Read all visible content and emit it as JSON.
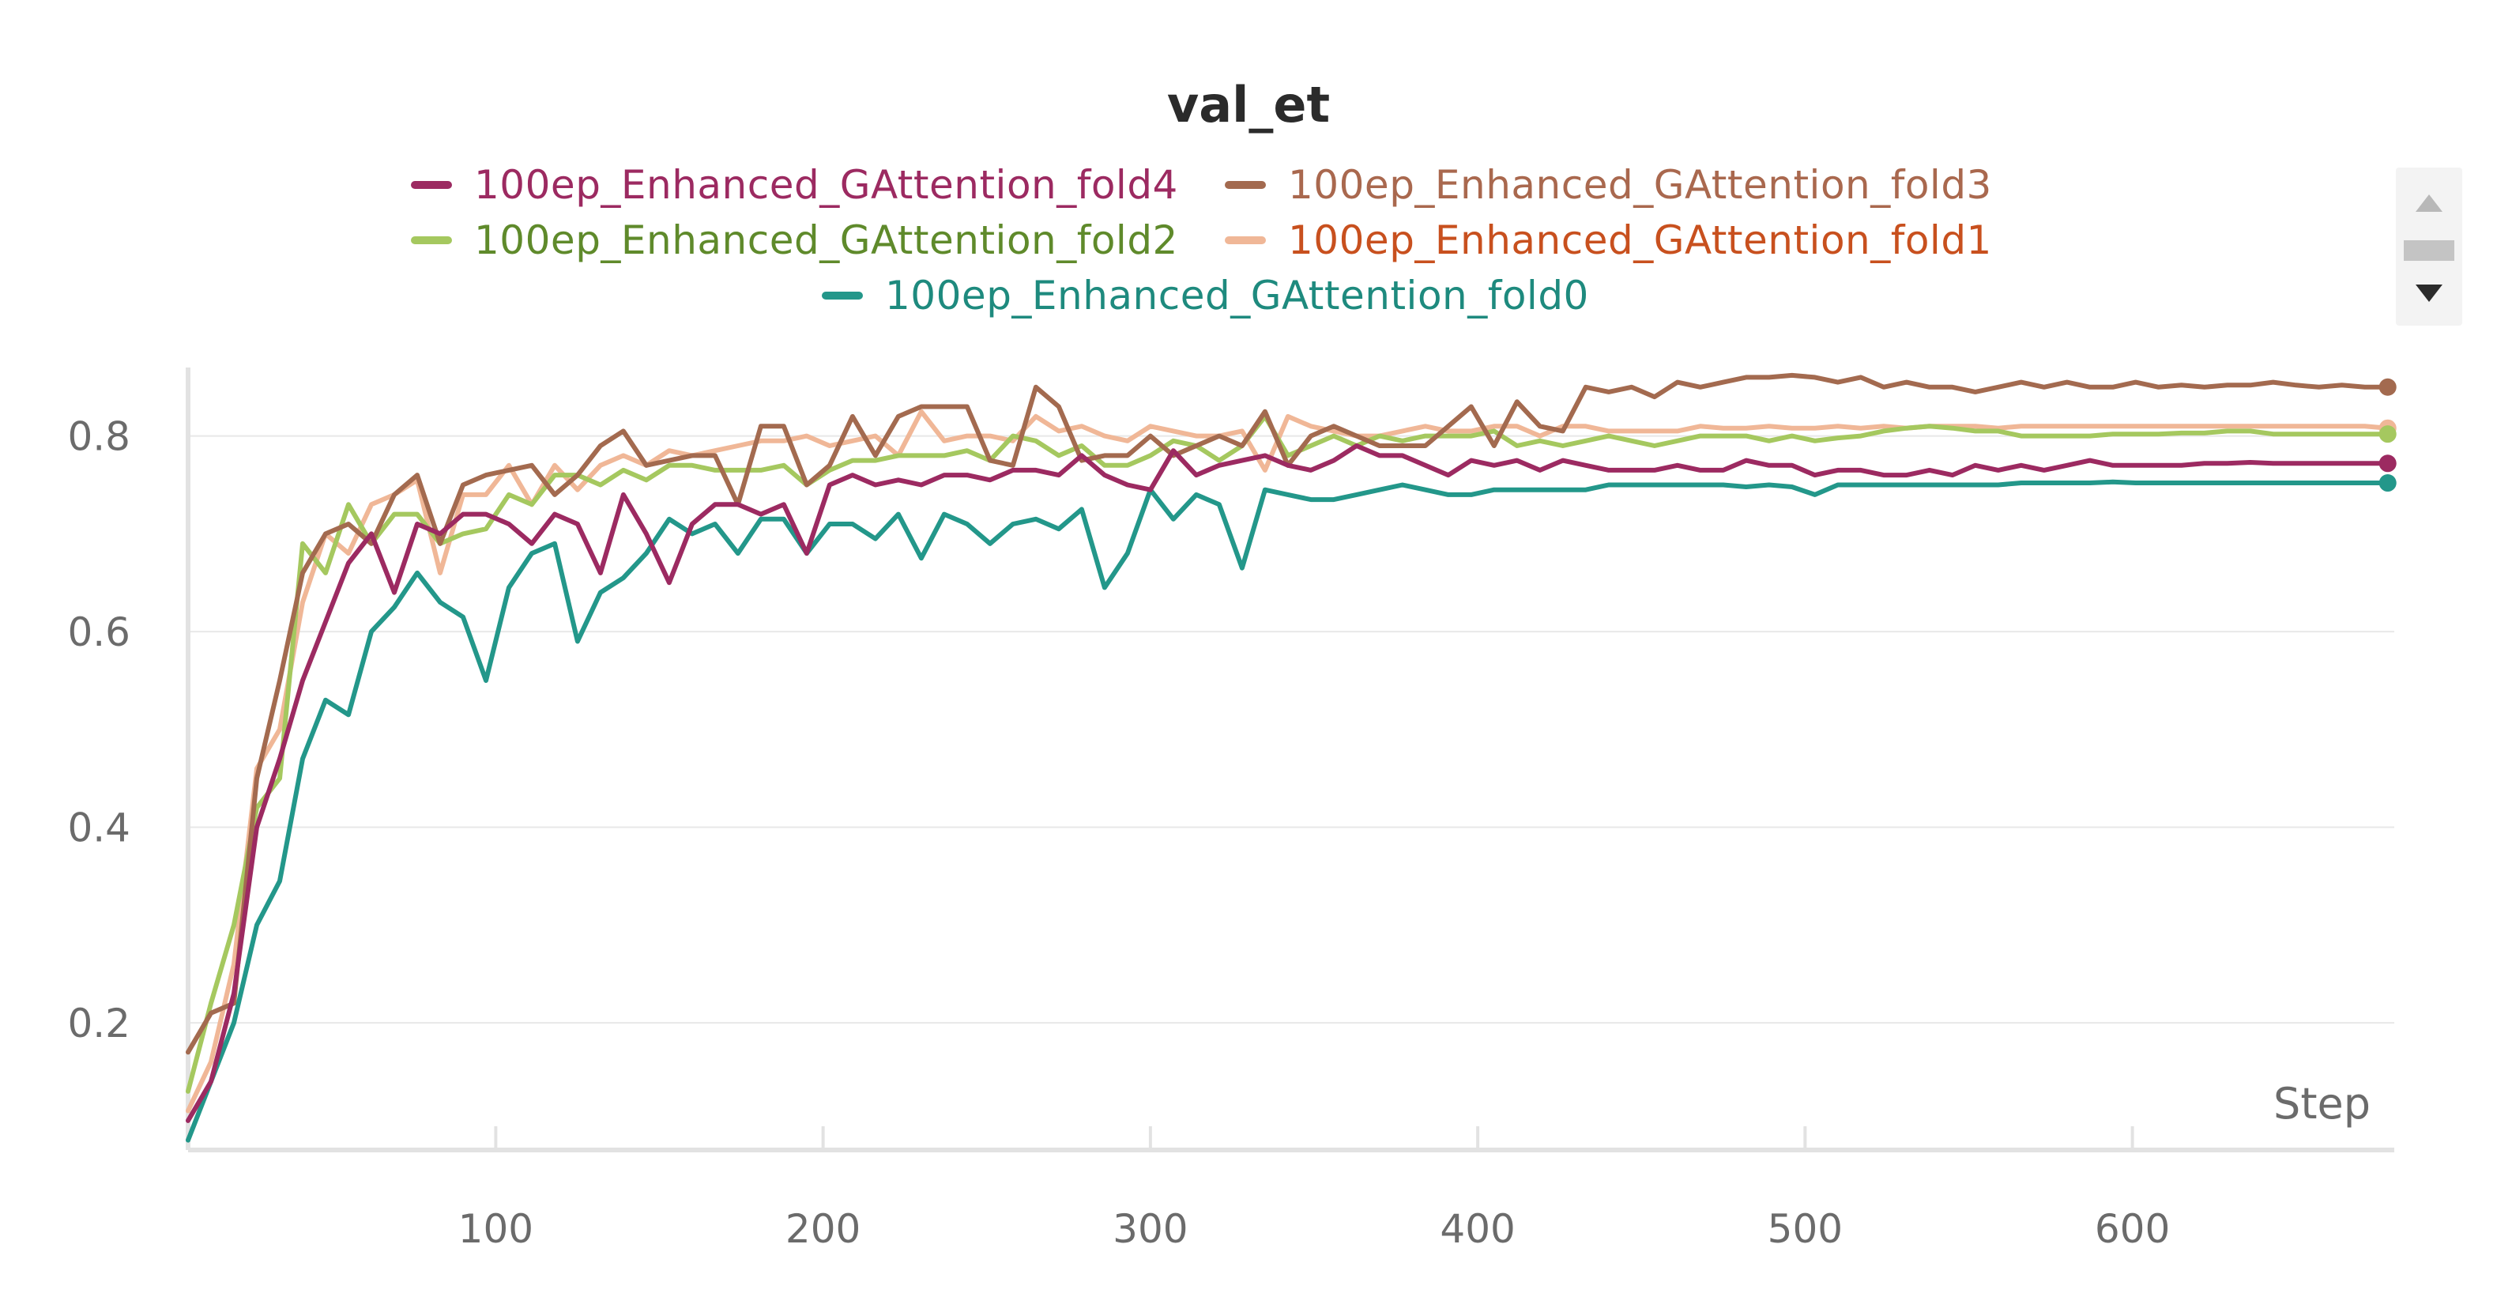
{
  "chart_data": {
    "type": "line",
    "title": "val_et",
    "xlabel": "Step",
    "ylabel": "",
    "xlim": [
      6,
      680
    ],
    "ylim": [
      0.07,
      0.87
    ],
    "xticks": [
      100,
      200,
      300,
      400,
      500,
      600
    ],
    "yticks": [
      0.2,
      0.4,
      0.6,
      0.8
    ],
    "grid": true,
    "legend_position": "top",
    "series": [
      {
        "name": "100ep_Enhanced_GAttention_fold4",
        "color": "#9c2a61",
        "text_color": "#9c2a61",
        "x": [
          6,
          13,
          20,
          27,
          34,
          41,
          48,
          55,
          62,
          69,
          76,
          83,
          90,
          97,
          104,
          111,
          118,
          125,
          132,
          139,
          146,
          153,
          160,
          167,
          174,
          181,
          188,
          195,
          202,
          209,
          216,
          223,
          230,
          237,
          244,
          251,
          258,
          265,
          272,
          279,
          286,
          293,
          300,
          307,
          314,
          321,
          328,
          335,
          342,
          349,
          356,
          363,
          370,
          377,
          384,
          391,
          398,
          405,
          412,
          419,
          426,
          433,
          440,
          447,
          454,
          461,
          468,
          475,
          482,
          489,
          496,
          503,
          510,
          517,
          524,
          531,
          538,
          545,
          552,
          559,
          566,
          573,
          580,
          587,
          594,
          601,
          608,
          615,
          622,
          629,
          636,
          643,
          650,
          657,
          664,
          671,
          678
        ],
        "values": [
          0.1,
          0.14,
          0.23,
          0.4,
          0.47,
          0.55,
          0.61,
          0.67,
          0.7,
          0.64,
          0.71,
          0.7,
          0.72,
          0.72,
          0.71,
          0.69,
          0.72,
          0.71,
          0.66,
          0.74,
          0.7,
          0.65,
          0.71,
          0.73,
          0.73,
          0.72,
          0.73,
          0.68,
          0.75,
          0.76,
          0.75,
          0.755,
          0.75,
          0.76,
          0.76,
          0.755,
          0.765,
          0.765,
          0.76,
          0.78,
          0.76,
          0.75,
          0.745,
          0.785,
          0.76,
          0.77,
          0.775,
          0.78,
          0.77,
          0.765,
          0.775,
          0.79,
          0.78,
          0.78,
          0.77,
          0.76,
          0.775,
          0.77,
          0.775,
          0.765,
          0.775,
          0.77,
          0.765,
          0.765,
          0.765,
          0.77,
          0.765,
          0.765,
          0.775,
          0.77,
          0.77,
          0.76,
          0.765,
          0.765,
          0.76,
          0.76,
          0.765,
          0.76,
          0.77,
          0.765,
          0.77,
          0.765,
          0.77,
          0.775,
          0.77,
          0.77,
          0.77,
          0.77,
          0.772,
          0.772,
          0.773,
          0.772,
          0.772,
          0.772,
          0.772,
          0.772,
          0.772
        ],
        "end_value": 0.772
      },
      {
        "name": "100ep_Enhanced_GAttention_fold3",
        "color": "#a36a4f",
        "text_color": "#a9684e",
        "x": [
          6,
          13,
          20,
          27,
          34,
          41,
          48,
          55,
          62,
          69,
          76,
          83,
          90,
          97,
          104,
          111,
          118,
          125,
          132,
          139,
          146,
          153,
          160,
          167,
          174,
          181,
          188,
          195,
          202,
          209,
          216,
          223,
          230,
          237,
          244,
          251,
          258,
          265,
          272,
          279,
          286,
          293,
          300,
          307,
          314,
          321,
          328,
          335,
          342,
          349,
          356,
          363,
          370,
          377,
          384,
          391,
          398,
          405,
          412,
          419,
          426,
          433,
          440,
          447,
          454,
          461,
          468,
          475,
          482,
          489,
          496,
          503,
          510,
          517,
          524,
          531,
          538,
          545,
          552,
          559,
          566,
          573,
          580,
          587,
          594,
          601,
          608,
          615,
          622,
          629,
          636,
          643,
          650,
          657,
          664,
          671,
          678
        ],
        "values": [
          0.17,
          0.21,
          0.22,
          0.45,
          0.55,
          0.66,
          0.7,
          0.71,
          0.69,
          0.74,
          0.76,
          0.69,
          0.75,
          0.76,
          0.765,
          0.77,
          0.74,
          0.76,
          0.79,
          0.805,
          0.77,
          0.775,
          0.78,
          0.78,
          0.73,
          0.81,
          0.81,
          0.75,
          0.77,
          0.82,
          0.78,
          0.82,
          0.83,
          0.83,
          0.83,
          0.775,
          0.77,
          0.85,
          0.83,
          0.775,
          0.78,
          0.78,
          0.8,
          0.78,
          0.79,
          0.8,
          0.79,
          0.825,
          0.77,
          0.8,
          0.81,
          0.8,
          0.79,
          0.79,
          0.79,
          0.81,
          0.83,
          0.79,
          0.835,
          0.81,
          0.805,
          0.85,
          0.845,
          0.85,
          0.84,
          0.855,
          0.85,
          0.855,
          0.86,
          0.86,
          0.862,
          0.86,
          0.855,
          0.86,
          0.85,
          0.855,
          0.85,
          0.85,
          0.845,
          0.85,
          0.855,
          0.85,
          0.855,
          0.85,
          0.85,
          0.855,
          0.85,
          0.852,
          0.85,
          0.852,
          0.852,
          0.855,
          0.852,
          0.85,
          0.852,
          0.85,
          0.85
        ],
        "end_value": 0.85
      },
      {
        "name": "100ep_Enhanced_GAttention_fold2",
        "color": "#a5c85f",
        "text_color": "#5f8a2b",
        "x": [
          6,
          13,
          20,
          27,
          34,
          41,
          48,
          55,
          62,
          69,
          76,
          83,
          90,
          97,
          104,
          111,
          118,
          125,
          132,
          139,
          146,
          153,
          160,
          167,
          174,
          181,
          188,
          195,
          202,
          209,
          216,
          223,
          230,
          237,
          244,
          251,
          258,
          265,
          272,
          279,
          286,
          293,
          300,
          307,
          314,
          321,
          328,
          335,
          342,
          349,
          356,
          363,
          370,
          377,
          384,
          391,
          398,
          405,
          412,
          419,
          426,
          433,
          440,
          447,
          454,
          461,
          468,
          475,
          482,
          489,
          496,
          503,
          510,
          517,
          524,
          531,
          538,
          545,
          552,
          559,
          566,
          573,
          580,
          587,
          594,
          601,
          608,
          615,
          622,
          629,
          636,
          643,
          650,
          657,
          664,
          671,
          678
        ],
        "values": [
          0.13,
          0.22,
          0.3,
          0.42,
          0.45,
          0.69,
          0.66,
          0.73,
          0.69,
          0.72,
          0.72,
          0.69,
          0.7,
          0.705,
          0.74,
          0.73,
          0.76,
          0.76,
          0.75,
          0.765,
          0.755,
          0.77,
          0.77,
          0.765,
          0.765,
          0.765,
          0.77,
          0.75,
          0.765,
          0.775,
          0.775,
          0.78,
          0.78,
          0.78,
          0.785,
          0.775,
          0.8,
          0.795,
          0.78,
          0.79,
          0.77,
          0.77,
          0.78,
          0.795,
          0.79,
          0.775,
          0.79,
          0.82,
          0.78,
          0.79,
          0.8,
          0.79,
          0.8,
          0.795,
          0.8,
          0.8,
          0.8,
          0.805,
          0.79,
          0.795,
          0.79,
          0.795,
          0.8,
          0.795,
          0.79,
          0.795,
          0.8,
          0.8,
          0.8,
          0.795,
          0.8,
          0.795,
          0.798,
          0.8,
          0.805,
          0.808,
          0.81,
          0.808,
          0.805,
          0.805,
          0.8,
          0.8,
          0.8,
          0.8,
          0.802,
          0.802,
          0.802,
          0.803,
          0.803,
          0.805,
          0.805,
          0.802,
          0.802,
          0.802,
          0.802,
          0.802,
          0.802
        ],
        "end_value": 0.802
      },
      {
        "name": "100ep_Enhanced_GAttention_fold1",
        "color": "#f0b797",
        "text_color": "#c8501e",
        "x": [
          6,
          13,
          20,
          27,
          34,
          41,
          48,
          55,
          62,
          69,
          76,
          83,
          90,
          97,
          104,
          111,
          118,
          125,
          132,
          139,
          146,
          153,
          160,
          167,
          174,
          181,
          188,
          195,
          202,
          209,
          216,
          223,
          230,
          237,
          244,
          251,
          258,
          265,
          272,
          279,
          286,
          293,
          300,
          307,
          314,
          321,
          328,
          335,
          342,
          349,
          356,
          363,
          370,
          377,
          384,
          391,
          398,
          405,
          412,
          419,
          426,
          433,
          440,
          447,
          454,
          461,
          468,
          475,
          482,
          489,
          496,
          503,
          510,
          517,
          524,
          531,
          538,
          545,
          552,
          559,
          566,
          573,
          580,
          587,
          594,
          601,
          608,
          615,
          622,
          629,
          636,
          643,
          650,
          657,
          664,
          671,
          678
        ],
        "values": [
          0.11,
          0.16,
          0.26,
          0.46,
          0.5,
          0.63,
          0.7,
          0.68,
          0.73,
          0.74,
          0.755,
          0.66,
          0.74,
          0.74,
          0.77,
          0.73,
          0.77,
          0.745,
          0.77,
          0.78,
          0.77,
          0.785,
          0.78,
          0.785,
          0.79,
          0.795,
          0.795,
          0.8,
          0.79,
          0.795,
          0.8,
          0.78,
          0.825,
          0.795,
          0.8,
          0.8,
          0.795,
          0.82,
          0.805,
          0.81,
          0.8,
          0.795,
          0.81,
          0.805,
          0.8,
          0.8,
          0.805,
          0.765,
          0.82,
          0.81,
          0.805,
          0.8,
          0.8,
          0.805,
          0.81,
          0.805,
          0.805,
          0.81,
          0.81,
          0.8,
          0.81,
          0.81,
          0.805,
          0.805,
          0.805,
          0.805,
          0.81,
          0.808,
          0.808,
          0.81,
          0.808,
          0.808,
          0.81,
          0.808,
          0.81,
          0.808,
          0.81,
          0.81,
          0.81,
          0.808,
          0.81,
          0.81,
          0.81,
          0.81,
          0.81,
          0.81,
          0.81,
          0.81,
          0.81,
          0.81,
          0.81,
          0.81,
          0.81,
          0.81,
          0.81,
          0.81,
          0.808
        ],
        "end_value": 0.808
      },
      {
        "name": "100ep_Enhanced_GAttention_fold0",
        "color": "#23978a",
        "text_color": "#1e8a7e",
        "x": [
          6,
          13,
          20,
          27,
          34,
          41,
          48,
          55,
          62,
          69,
          76,
          83,
          90,
          97,
          104,
          111,
          118,
          125,
          132,
          139,
          146,
          153,
          160,
          167,
          174,
          181,
          188,
          195,
          202,
          209,
          216,
          223,
          230,
          237,
          244,
          251,
          258,
          265,
          272,
          279,
          286,
          293,
          300,
          307,
          314,
          321,
          328,
          335,
          342,
          349,
          356,
          363,
          370,
          377,
          384,
          391,
          398,
          405,
          412,
          419,
          426,
          433,
          440,
          447,
          454,
          461,
          468,
          475,
          482,
          489,
          496,
          503,
          510,
          517,
          524,
          531,
          538,
          545,
          552,
          559,
          566,
          573,
          580,
          587,
          594,
          601,
          608,
          615,
          622,
          629,
          636,
          643,
          650,
          657,
          664,
          671,
          678
        ],
        "values": [
          0.08,
          0.14,
          0.2,
          0.3,
          0.345,
          0.47,
          0.53,
          0.515,
          0.6,
          0.625,
          0.66,
          0.63,
          0.615,
          0.55,
          0.645,
          0.68,
          0.69,
          0.59,
          0.64,
          0.655,
          0.68,
          0.715,
          0.7,
          0.71,
          0.68,
          0.715,
          0.715,
          0.68,
          0.71,
          0.71,
          0.695,
          0.72,
          0.675,
          0.72,
          0.71,
          0.69,
          0.71,
          0.715,
          0.705,
          0.725,
          0.645,
          0.68,
          0.745,
          0.715,
          0.74,
          0.73,
          0.665,
          0.745,
          0.74,
          0.735,
          0.735,
          0.74,
          0.745,
          0.75,
          0.745,
          0.74,
          0.74,
          0.745,
          0.745,
          0.745,
          0.745,
          0.745,
          0.75,
          0.75,
          0.75,
          0.75,
          0.75,
          0.75,
          0.748,
          0.75,
          0.748,
          0.74,
          0.75,
          0.75,
          0.75,
          0.75,
          0.75,
          0.75,
          0.75,
          0.75,
          0.752,
          0.752,
          0.752,
          0.752,
          0.753,
          0.752,
          0.752,
          0.752,
          0.752,
          0.752,
          0.752,
          0.752,
          0.752,
          0.752,
          0.752,
          0.752,
          0.752
        ],
        "end_value": 0.752
      }
    ]
  },
  "legend_scroller": {
    "up_icon": "scroll-up-icon",
    "down_icon": "scroll-down-icon"
  }
}
